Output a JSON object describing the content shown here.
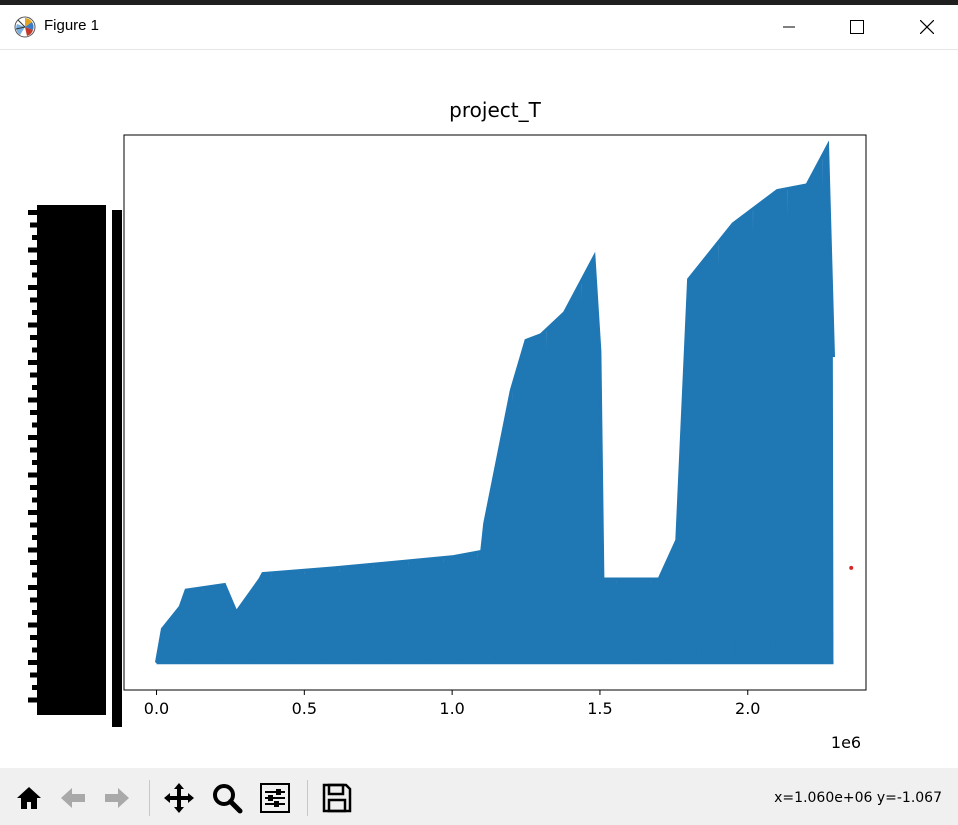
{
  "window": {
    "title": "Figure 1",
    "buttons": {
      "minimize": "minimize",
      "maximize": "maximize",
      "close": "close"
    }
  },
  "toolbar": {
    "items": [
      {
        "name": "home",
        "icon": "home-icon"
      },
      {
        "name": "back",
        "icon": "arrow-left-icon"
      },
      {
        "name": "forward",
        "icon": "arrow-right-icon"
      },
      {
        "name": "pan",
        "icon": "move-icon"
      },
      {
        "name": "zoom",
        "icon": "magnifier-icon"
      },
      {
        "name": "configure",
        "icon": "sliders-icon"
      },
      {
        "name": "save",
        "icon": "floppy-disk-icon"
      }
    ],
    "coords": "x=1.060e+06 y=-1.067"
  },
  "chart_data": {
    "type": "line",
    "title": "project_T",
    "x_ticks": [
      "0.0",
      "0.5",
      "1.0",
      "1.5",
      "2.0"
    ],
    "x_tick_values": [
      0,
      500000,
      1000000,
      1500000,
      2000000
    ],
    "x_offset_label": "1e6",
    "xlim": [
      -110000,
      2400000
    ],
    "ylim": [
      0,
      1
    ],
    "ylabel": "",
    "y_tick_labels_overlapping": true,
    "series": [
      {
        "color": "#1f77b4",
        "baseline": 0.05,
        "envelope": {
          "x": [
            0,
            20000,
            80000,
            100000,
            230000,
            270000,
            350000,
            360000,
            600000,
            1000000,
            1100000,
            1110000,
            1200000,
            1250000,
            1300000,
            1380000,
            1480000,
            1500000,
            1510000,
            1700000,
            1760000,
            1800000,
            1950000,
            2100000,
            2200000,
            2270000,
            2290000
          ],
          "y": [
            0.05,
            0.11,
            0.15,
            0.18,
            0.19,
            0.14,
            0.2,
            0.21,
            0.22,
            0.24,
            0.25,
            0.3,
            0.54,
            0.63,
            0.64,
            0.68,
            0.78,
            0.61,
            0.2,
            0.2,
            0.27,
            0.74,
            0.84,
            0.9,
            0.91,
            0.98,
            0.6
          ]
        }
      }
    ],
    "annotations": [
      {
        "x": 2350000,
        "y": 0.22,
        "color": "#d62728",
        "kind": "point"
      }
    ]
  }
}
